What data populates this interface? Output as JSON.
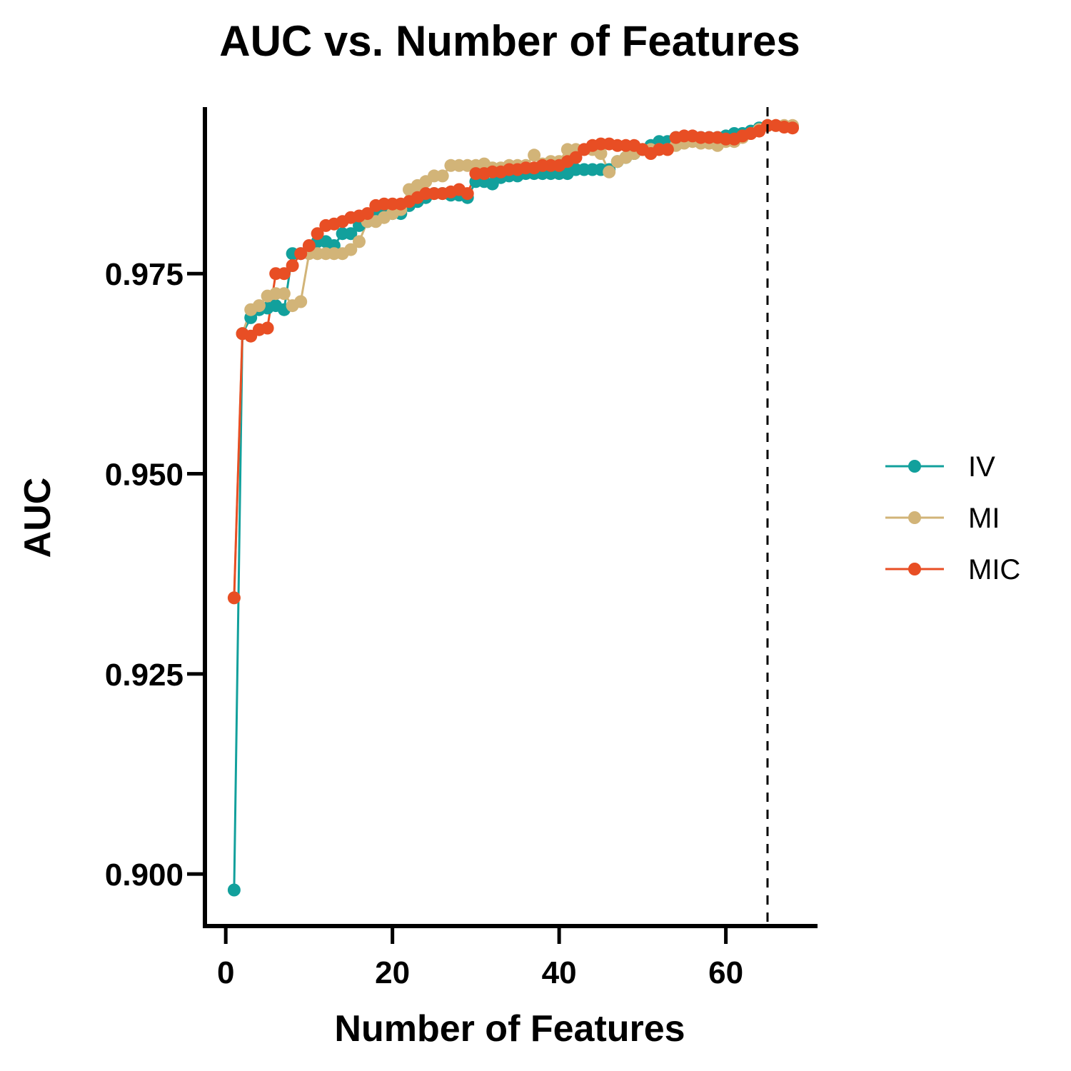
{
  "chart_data": {
    "type": "line",
    "title": "AUC vs. Number of Features",
    "xlabel": "Number of Features",
    "ylabel": "AUC",
    "xlim": [
      -2.5,
      71
    ],
    "ylim": [
      0.8935,
      0.9958
    ],
    "x_ticks": [
      0,
      20,
      40,
      60
    ],
    "x_tick_labels": [
      "0",
      "20",
      "40",
      "60"
    ],
    "y_ticks": [
      0.9,
      0.925,
      0.95,
      0.975
    ],
    "y_tick_labels": [
      "0.900",
      "0.925",
      "0.950",
      "0.975"
    ],
    "vline_x": 65,
    "grid": false,
    "legend_position": "right",
    "series": [
      {
        "name": "IV",
        "color": "#12a09c",
        "x": [
          1,
          2,
          3,
          4,
          5,
          6,
          7,
          8,
          9,
          10,
          11,
          12,
          13,
          14,
          15,
          16,
          17,
          18,
          19,
          20,
          21,
          22,
          23,
          24,
          25,
          26,
          27,
          28,
          29,
          30,
          31,
          32,
          33,
          34,
          35,
          36,
          37,
          38,
          39,
          40,
          41,
          42,
          43,
          44,
          45,
          46,
          47,
          48,
          49,
          50,
          51,
          52,
          53,
          54,
          55,
          56,
          57,
          58,
          59,
          60,
          61,
          62,
          63,
          64,
          65
        ],
        "y": [
          0.898,
          0.9675,
          0.9695,
          0.9705,
          0.9707,
          0.971,
          0.9705,
          0.9775,
          0.9775,
          0.978,
          0.979,
          0.979,
          0.9785,
          0.98,
          0.98,
          0.981,
          0.9815,
          0.982,
          0.9825,
          0.9825,
          0.9825,
          0.9835,
          0.984,
          0.9845,
          0.985,
          0.985,
          0.9848,
          0.9848,
          0.9845,
          0.9865,
          0.9865,
          0.9862,
          0.987,
          0.9872,
          0.9872,
          0.9875,
          0.9875,
          0.9875,
          0.9875,
          0.9875,
          0.9875,
          0.988,
          0.988,
          0.988,
          0.988,
          0.988,
          0.989,
          0.9895,
          0.99,
          0.9905,
          0.991,
          0.9915,
          0.9915,
          0.992,
          0.992,
          0.992,
          0.992,
          0.992,
          0.992,
          0.9922,
          0.9925,
          0.9925,
          0.9928,
          0.9932,
          0.9935
        ]
      },
      {
        "name": "MI",
        "color": "#d2b478",
        "x": [
          1,
          2,
          3,
          4,
          5,
          6,
          7,
          8,
          9,
          10,
          11,
          12,
          13,
          14,
          15,
          16,
          17,
          18,
          19,
          20,
          21,
          22,
          23,
          24,
          25,
          26,
          27,
          28,
          29,
          30,
          31,
          32,
          33,
          34,
          35,
          36,
          37,
          38,
          39,
          40,
          41,
          42,
          43,
          44,
          45,
          46,
          47,
          48,
          49,
          50,
          51,
          52,
          53,
          54,
          55,
          56,
          57,
          58,
          59,
          60,
          61,
          62,
          63,
          64,
          65,
          66,
          67,
          68
        ],
        "y": [
          0.9345,
          0.9675,
          0.9705,
          0.971,
          0.9722,
          0.9725,
          0.9725,
          0.971,
          0.9715,
          0.9775,
          0.9775,
          0.9775,
          0.9775,
          0.9775,
          0.978,
          0.979,
          0.9815,
          0.9815,
          0.982,
          0.9825,
          0.983,
          0.9855,
          0.986,
          0.9865,
          0.9872,
          0.9872,
          0.9885,
          0.9885,
          0.9885,
          0.9885,
          0.9887,
          0.9882,
          0.9882,
          0.9885,
          0.9885,
          0.9885,
          0.9898,
          0.9887,
          0.989,
          0.989,
          0.9905,
          0.9905,
          0.9905,
          0.9905,
          0.99,
          0.9877,
          0.989,
          0.9895,
          0.99,
          0.9905,
          0.9905,
          0.9905,
          0.9905,
          0.991,
          0.9913,
          0.9915,
          0.9913,
          0.9913,
          0.991,
          0.9915,
          0.9915,
          0.992,
          0.9925,
          0.993,
          0.9935,
          0.9935,
          0.9935,
          0.9935
        ]
      },
      {
        "name": "MIC",
        "color": "#e84e24",
        "x": [
          1,
          2,
          3,
          4,
          5,
          6,
          7,
          8,
          9,
          10,
          11,
          12,
          13,
          14,
          15,
          16,
          17,
          18,
          19,
          20,
          21,
          22,
          23,
          24,
          25,
          26,
          27,
          28,
          29,
          30,
          31,
          32,
          33,
          34,
          35,
          36,
          37,
          38,
          39,
          40,
          41,
          42,
          43,
          44,
          45,
          46,
          47,
          48,
          49,
          50,
          51,
          52,
          53,
          54,
          55,
          56,
          57,
          58,
          59,
          60,
          61,
          62,
          63,
          64,
          65,
          66,
          67,
          68
        ],
        "y": [
          0.9345,
          0.9675,
          0.9672,
          0.968,
          0.9682,
          0.975,
          0.975,
          0.976,
          0.9775,
          0.9785,
          0.98,
          0.981,
          0.9812,
          0.9815,
          0.982,
          0.9822,
          0.9825,
          0.9835,
          0.9837,
          0.9837,
          0.9837,
          0.984,
          0.9845,
          0.985,
          0.985,
          0.985,
          0.9852,
          0.9855,
          0.985,
          0.9875,
          0.9875,
          0.9877,
          0.9877,
          0.988,
          0.988,
          0.9882,
          0.9882,
          0.9885,
          0.9885,
          0.9885,
          0.989,
          0.9895,
          0.9905,
          0.991,
          0.9912,
          0.9912,
          0.991,
          0.991,
          0.991,
          0.9905,
          0.99,
          0.9905,
          0.9905,
          0.992,
          0.9922,
          0.9922,
          0.992,
          0.992,
          0.992,
          0.9918,
          0.9918,
          0.9922,
          0.9925,
          0.9928,
          0.9935,
          0.9935,
          0.9933,
          0.9932
        ]
      }
    ]
  }
}
